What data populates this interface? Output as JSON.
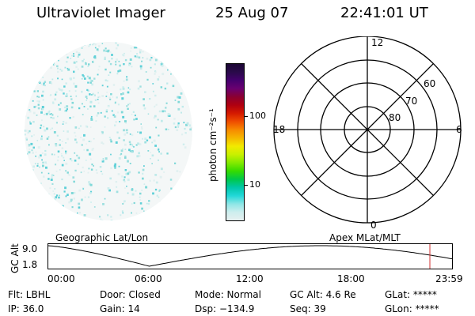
{
  "header": {
    "instrument": "Ultraviolet Imager",
    "date": "25 Aug 07",
    "time": "22:41:01 UT"
  },
  "colorbar": {
    "unit_label": "photon cm⁻²s⁻¹",
    "tick_labels": [
      "100",
      "10"
    ],
    "colors": [
      "#1a0633",
      "#2a0a4a",
      "#45006e",
      "#6a0070",
      "#8b0030",
      "#b00010",
      "#d51a00",
      "#ef4d00",
      "#f78a00",
      "#f5b800",
      "#f2ea00",
      "#c8f000",
      "#82ea00",
      "#36db00",
      "#00c84a",
      "#00c7a8",
      "#22d8d8",
      "#8ee6e6",
      "#cdeeee",
      "#e6efef"
    ]
  },
  "polar_plot": {
    "clock_labels": {
      "top": "12",
      "left": "18",
      "right": "6",
      "bottom": "0"
    },
    "lat_labels": [
      "60",
      "70",
      "80"
    ]
  },
  "timeline": {
    "ylabel": "GC Alt",
    "y_ticks": [
      "9.0",
      "1.8"
    ],
    "left_title": "Geographic Lat/Lon",
    "right_title": "Apex MLat/MLT",
    "x_ticks": [
      "00:00",
      "06:00",
      "12:00",
      "18:00",
      "23:59"
    ],
    "marker_color": "#d03030"
  },
  "info": {
    "filter": "Flt: LBHL",
    "ip": "IP: 36.0",
    "door": "Door: Closed",
    "gain": "Gain: 14",
    "mode": "Mode: Normal",
    "dsp": "Dsp: −134.9",
    "gc_alt": "GC Alt: 4.6 Re",
    "seq": "Seq: 39",
    "glat": "GLat: *****",
    "glon": "GLon: *****"
  }
}
